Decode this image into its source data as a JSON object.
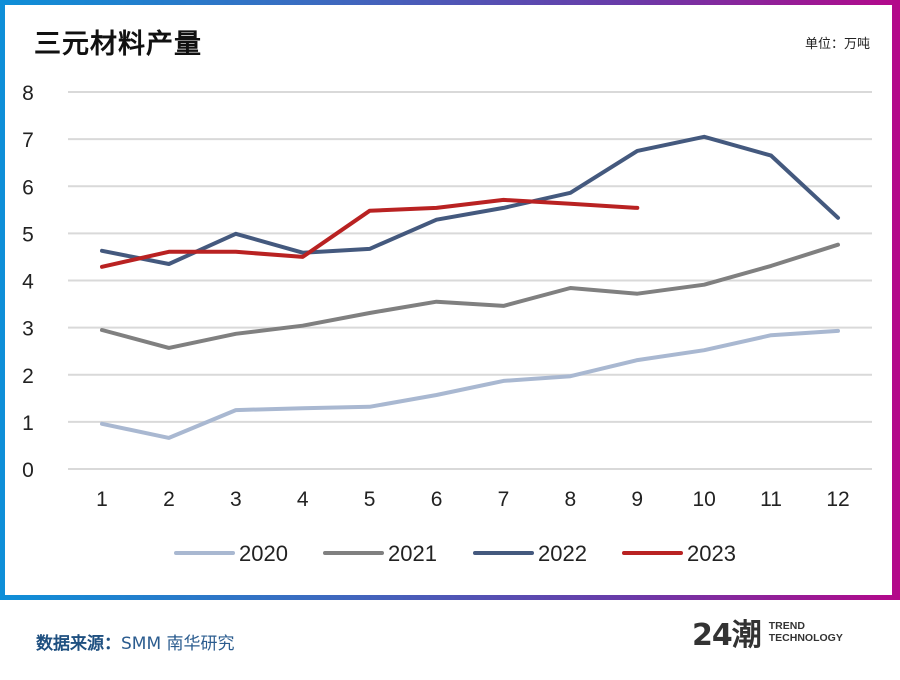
{
  "header": {
    "title": "三元材料产量",
    "unit": "单位：万吨"
  },
  "footer": {
    "source_label": "数据来源：",
    "source_value": "SMM 南华研究",
    "brand_mark": "24潮",
    "brand_line1": "TREND",
    "brand_line2": "TECHNOLOGY"
  },
  "colors": {
    "2020": "#a9b8d1",
    "2021": "#808080",
    "2022": "#44597e",
    "2023": "#b92222",
    "grid": "#d9d9d9",
    "frame_start": "#0e8fd8",
    "frame_end": "#b4088a"
  },
  "chart_data": {
    "type": "line",
    "title": "三元材料产量",
    "xlabel": "",
    "ylabel": "单位：万吨",
    "x": [
      1,
      2,
      3,
      4,
      5,
      6,
      7,
      8,
      9,
      10,
      11,
      12
    ],
    "x_tick_labels": [
      "1",
      "2",
      "3",
      "4",
      "5",
      "6",
      "7",
      "8",
      "9",
      "10",
      "11",
      "12"
    ],
    "y_tick_labels": [
      "0",
      "1",
      "2",
      "3",
      "4",
      "5",
      "6",
      "7",
      "8"
    ],
    "ylim": [
      0,
      8
    ],
    "grid": true,
    "legend_position": "bottom",
    "series": [
      {
        "name": "2020",
        "values": [
          0.96,
          0.66,
          1.25,
          1.29,
          1.32,
          1.57,
          1.87,
          1.97,
          2.31,
          2.52,
          2.84,
          2.93
        ]
      },
      {
        "name": "2021",
        "values": [
          2.95,
          2.57,
          2.87,
          3.04,
          3.31,
          3.55,
          3.46,
          3.84,
          3.72,
          3.91,
          4.31,
          4.76
        ]
      },
      {
        "name": "2022",
        "values": [
          4.63,
          4.35,
          4.99,
          4.59,
          4.67,
          5.29,
          5.54,
          5.86,
          6.75,
          7.05,
          6.65,
          5.33
        ]
      },
      {
        "name": "2023",
        "values": [
          4.29,
          4.61,
          4.61,
          4.5,
          5.48,
          5.54,
          5.71,
          5.63,
          5.54
        ]
      }
    ]
  }
}
